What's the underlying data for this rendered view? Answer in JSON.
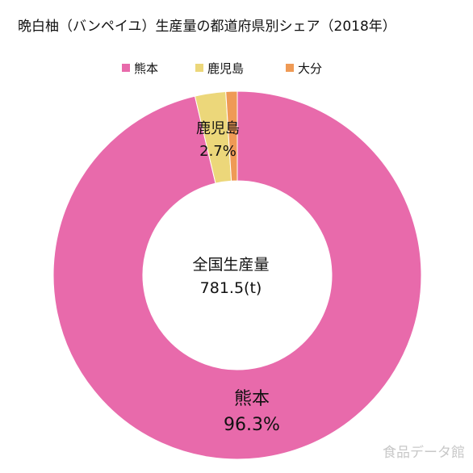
{
  "chart_data": {
    "type": "pie",
    "style": "donut",
    "title": "晩白柚（バンペイユ）生産量の都道府県別シェア（2018年）",
    "center_label": "全国生産量",
    "center_value": "781.5(t)",
    "legend_position": "top",
    "categories": [
      "熊本",
      "鹿児島",
      "大分"
    ],
    "values": [
      96.3,
      2.7,
      1.0
    ],
    "value_labels": [
      "96.3%",
      "2.7%",
      ""
    ],
    "colors": [
      "#e86aab",
      "#ecd77a",
      "#ef9a55"
    ],
    "slice_labels_shown": [
      "熊本",
      "鹿児島",
      ""
    ]
  },
  "watermark": "食品データ館"
}
